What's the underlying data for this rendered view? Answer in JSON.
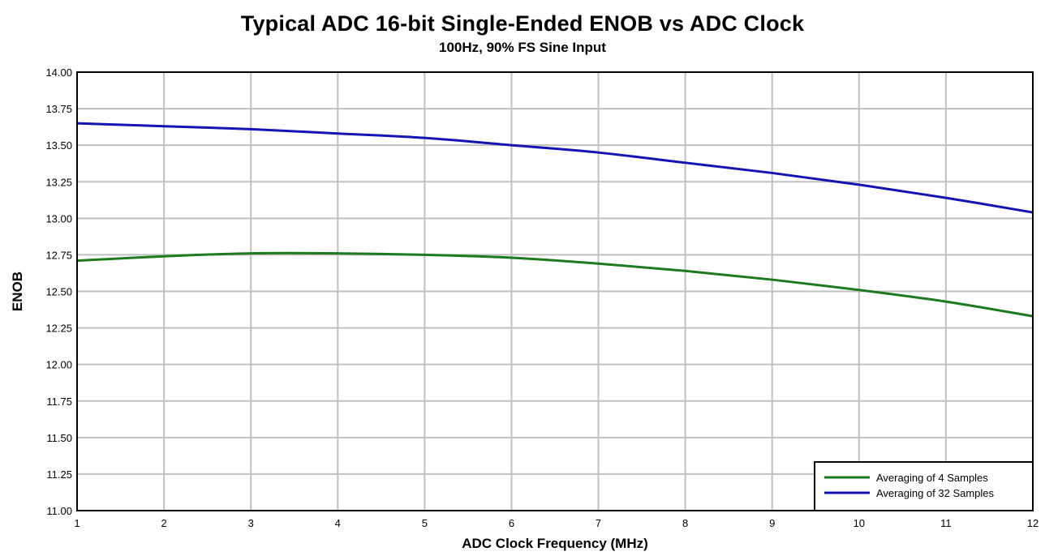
{
  "chart_data": {
    "type": "line",
    "title": "Typical ADC 16-bit Single-Ended ENOB vs ADC Clock",
    "subtitle": "100Hz, 90% FS Sine Input",
    "xlabel": "ADC Clock Frequency (MHz)",
    "ylabel": "ENOB",
    "xlim": [
      1,
      12
    ],
    "ylim": [
      11.0,
      14.0
    ],
    "x_ticks": [
      "1",
      "2",
      "3",
      "4",
      "5",
      "6",
      "7",
      "8",
      "9",
      "10",
      "11",
      "12"
    ],
    "y_ticks": [
      "11.00",
      "11.25",
      "11.50",
      "11.75",
      "12.00",
      "12.25",
      "12.50",
      "12.75",
      "13.00",
      "13.25",
      "13.50",
      "13.75",
      "14.00"
    ],
    "grid": true,
    "legend_position": "bottom-right",
    "x": [
      1,
      2,
      3,
      4,
      5,
      6,
      7,
      8,
      9,
      10,
      11,
      12
    ],
    "series": [
      {
        "name": "Averaging of 4 Samples",
        "color": "#1e7a1e",
        "values": [
          12.71,
          12.74,
          12.76,
          12.76,
          12.75,
          12.73,
          12.69,
          12.64,
          12.58,
          12.51,
          12.43,
          12.33
        ]
      },
      {
        "name": "Averaging of 32 Samples",
        "color": "#1414b4",
        "values": [
          13.65,
          13.63,
          13.61,
          13.58,
          13.55,
          13.5,
          13.45,
          13.38,
          13.31,
          13.23,
          13.14,
          13.04
        ]
      }
    ]
  }
}
